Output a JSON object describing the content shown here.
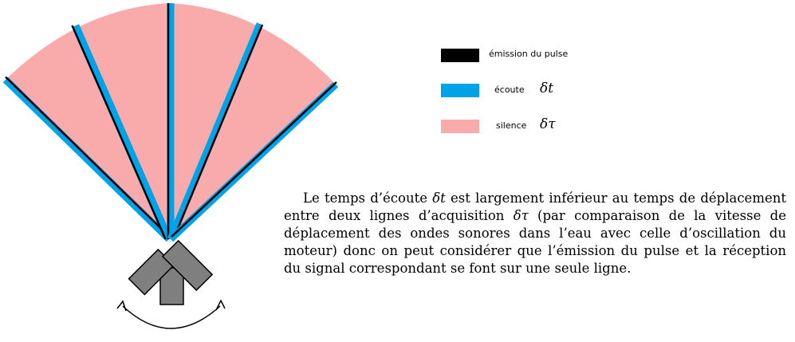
{
  "colors": {
    "emission": "#000000",
    "listen": "#00a2e8",
    "silence": "#f9abab",
    "housing": "#7f7f7f"
  },
  "legend": {
    "emission": {
      "label": "émission du pulse",
      "symbol": ""
    },
    "listen": {
      "label": "écoute",
      "symbol": "δt"
    },
    "silence": {
      "label": "silence",
      "symbol": "δτ"
    }
  },
  "paragraph": {
    "part1": "Le temps d’écoute ",
    "sym1": "δt",
    "part2": " est largement inférieur au temps de déplacement entre deux lignes d’acquisition ",
    "sym2": "δτ",
    "part3": " (par comparaison de la vitesse de déplacement des ondes sonores dans l’eau avec celle d’oscillation du moteur) donc on peut considérer que l’émission du pulse et la réception du signal correspondant se font sur une seule ligne."
  },
  "diagram": {
    "acquisition_lines": 5,
    "motion_arrow": "double-headed arc"
  }
}
